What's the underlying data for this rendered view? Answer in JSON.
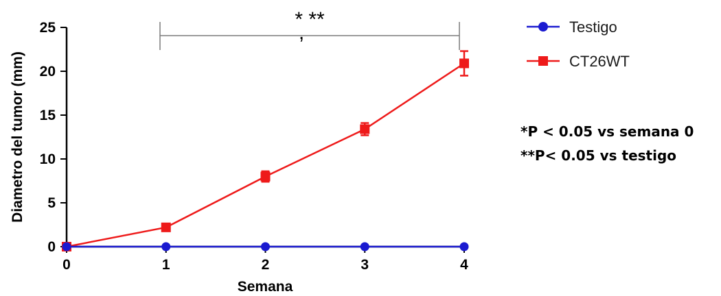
{
  "chart_data": {
    "type": "line",
    "x": [
      0,
      1,
      2,
      3,
      4
    ],
    "xlabel": "Semana",
    "ylabel": "Diametro del tumor (mm)",
    "xlim": [
      0,
      4
    ],
    "ylim": [
      0,
      25
    ],
    "xticks": [
      "0",
      "1",
      "2",
      "3",
      "4"
    ],
    "yticks": [
      "0",
      "5",
      "10",
      "15",
      "20",
      "25"
    ],
    "grid": false,
    "legend_position": "top-right",
    "series": [
      {
        "name": "Testigo",
        "values": [
          0,
          0,
          0,
          0,
          0
        ],
        "errors": [
          0,
          0,
          0,
          0,
          0
        ],
        "color": "#1a1ad0",
        "marker": "circle"
      },
      {
        "name": "CT26WT",
        "values": [
          0,
          2.2,
          8.0,
          13.4,
          20.9
        ],
        "errors": [
          0,
          0.3,
          0.6,
          0.7,
          1.4
        ],
        "color": "#ee1a1a",
        "marker": "square"
      }
    ],
    "significance": {
      "label": "* **",
      "x_range": [
        1,
        4
      ]
    },
    "annotations": [
      "*P < 0.05 vs semana 0",
      "**P< 0.05 vs testigo"
    ]
  }
}
